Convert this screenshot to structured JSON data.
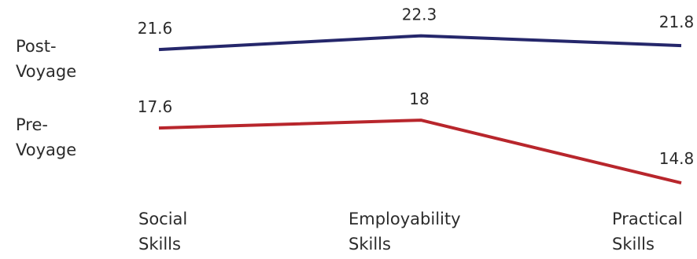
{
  "chart_data": {
    "type": "line",
    "categories": [
      [
        "Social",
        "Skills"
      ],
      [
        "Employability",
        "Skills"
      ],
      [
        "Practical",
        "Skills"
      ]
    ],
    "series": [
      {
        "name": [
          "Post-",
          "Voyage"
        ],
        "values": [
          21.6,
          22.3,
          21.8
        ],
        "color": "#25276b"
      },
      {
        "name": [
          "Pre-",
          "Voyage"
        ],
        "values": [
          17.6,
          18,
          14.8
        ],
        "color": "#b8262c"
      }
    ],
    "data_labels": [
      [
        "21.6",
        "22.3",
        "21.8"
      ],
      [
        "17.6",
        "18",
        "14.8"
      ]
    ],
    "legend_position": "left",
    "grid": false
  }
}
